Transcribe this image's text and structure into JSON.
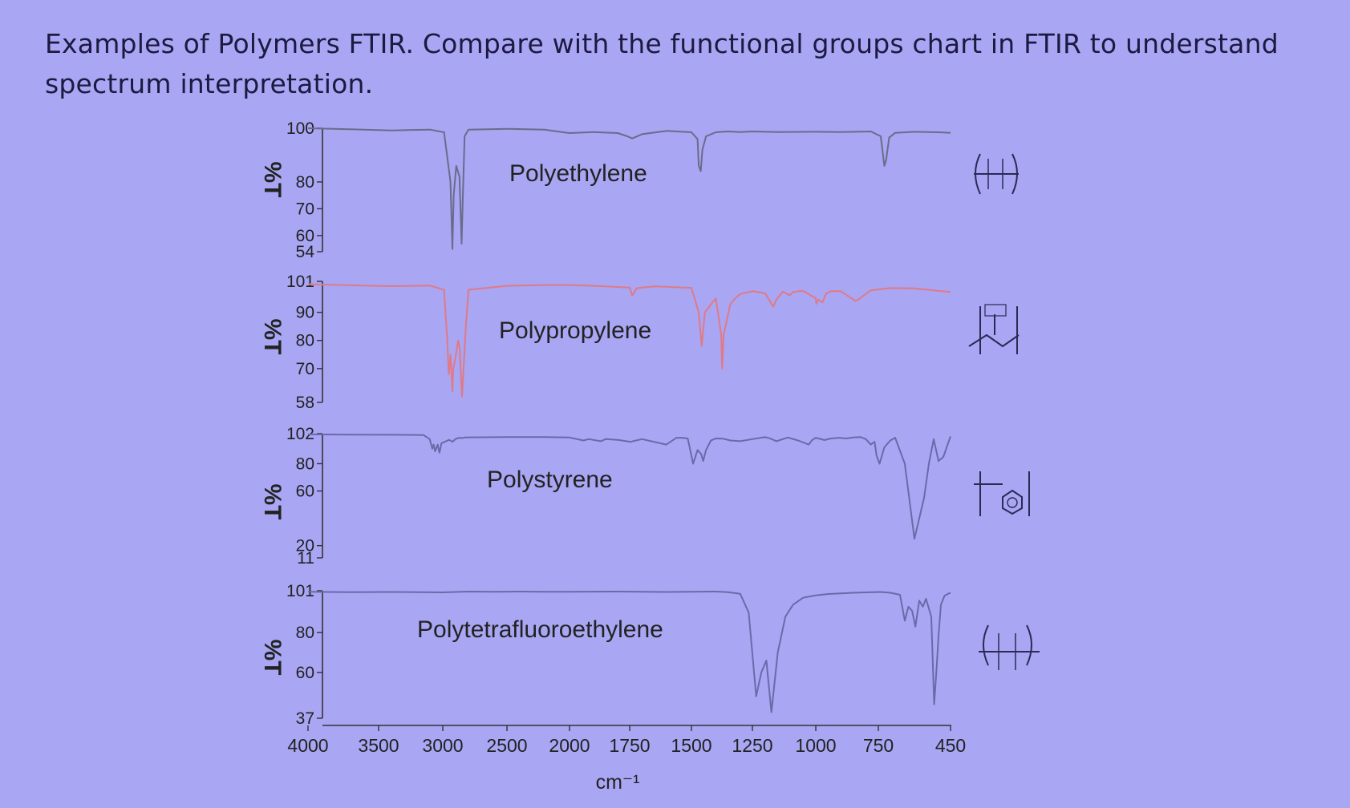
{
  "header": {
    "description": "Examples of Polymers FTIR. Compare with the functional groups chart in FTIR to understand spectrum interpretation."
  },
  "chart_data": {
    "type": "line",
    "xlabel": "cm⁻¹",
    "x_ticks": [
      4000,
      3500,
      3000,
      2500,
      2000,
      1750,
      1500,
      1250,
      1000,
      750,
      450
    ],
    "xlim": [
      4000,
      450
    ],
    "x_axis_note": "scale changes at 2000 cm-1",
    "panels": [
      {
        "name": "Polyethylene",
        "ylabel": "%T",
        "y_ticks": [
          100,
          80,
          70,
          60,
          54
        ],
        "ylim": [
          54,
          100
        ],
        "color": "#6b6b8a",
        "structure": "–(CH2–CH2)n–",
        "series": {
          "x": [
            4000,
            3700,
            3400,
            3100,
            2990,
            2940,
            2925,
            2915,
            2895,
            2870,
            2853,
            2845,
            2830,
            2800,
            2500,
            2200,
            2050,
            2000,
            1900,
            1800,
            1760,
            1740,
            1700,
            1600,
            1500,
            1475,
            1470,
            1462,
            1455,
            1440,
            1400,
            1350,
            1300,
            1250,
            1150,
            1000,
            900,
            780,
            740,
            725,
            718,
            705,
            680,
            600,
            500,
            450
          ],
          "y": [
            100,
            99.6,
            99.2,
            99.5,
            98.5,
            80,
            55,
            75,
            86,
            82,
            57,
            72,
            97,
            99.5,
            99.8,
            99.5,
            98.5,
            98.2,
            98.6,
            98.2,
            97,
            96.2,
            97.8,
            99,
            98.5,
            96,
            86,
            84,
            92,
            97,
            98.5,
            98.8,
            98.6,
            98.8,
            98.6,
            98.7,
            98.6,
            98.8,
            97,
            86,
            88,
            96.5,
            98.3,
            98.7,
            98.5,
            98.3
          ]
        }
      },
      {
        "name": "Polypropylene",
        "ylabel": "%T",
        "y_ticks": [
          101,
          90,
          80,
          70,
          58
        ],
        "ylim": [
          58,
          101
        ],
        "color": "#e07a85",
        "structure": "–(CH2–CH(CH3))n–",
        "series": {
          "x": [
            4000,
            3700,
            3400,
            3100,
            2990,
            2965,
            2953,
            2940,
            2925,
            2918,
            2905,
            2880,
            2868,
            2850,
            2838,
            2820,
            2800,
            2500,
            2200,
            2000,
            1900,
            1750,
            1740,
            1720,
            1650,
            1500,
            1470,
            1458,
            1445,
            1400,
            1378,
            1374,
            1368,
            1340,
            1320,
            1300,
            1250,
            1200,
            1168,
            1155,
            1130,
            1103,
            1090,
            1050,
            1000,
            998,
            990,
            973,
            960,
            940,
            900,
            841,
            830,
            808,
            780,
            700,
            600,
            450
          ],
          "y": [
            100,
            99.6,
            99.3,
            99.5,
            98,
            80,
            68,
            75,
            62,
            70,
            73,
            80,
            77,
            60,
            70,
            85,
            98,
            99.4,
            99.7,
            99.7,
            99.4,
            98.8,
            96,
            98.6,
            99.2,
            98.7,
            90,
            78,
            90,
            95,
            82,
            70,
            82,
            93,
            95,
            96.5,
            97.5,
            96.8,
            92,
            94.5,
            97.4,
            96,
            97.2,
            97.6,
            95,
            93,
            94.5,
            93.5,
            96.5,
            97.5,
            97.5,
            94,
            94.5,
            96,
            97.8,
            98.6,
            98.5,
            97.2
          ]
        }
      },
      {
        "name": "Polystyrene",
        "ylabel": "%T",
        "y_ticks": [
          102,
          80,
          60,
          20,
          11
        ],
        "ylim": [
          11,
          102
        ],
        "color": "#6a6aa8",
        "structure": "–(CH2–CH(C6H5))n–",
        "series": {
          "x": [
            4000,
            3700,
            3400,
            3150,
            3102,
            3082,
            3071,
            3060,
            3040,
            3026,
            3010,
            2950,
            2924,
            2900,
            2870,
            2850,
            2830,
            2800,
            2500,
            2200,
            2000,
            1942,
            1920,
            1870,
            1850,
            1800,
            1745,
            1730,
            1700,
            1602,
            1585,
            1560,
            1540,
            1515,
            1493,
            1475,
            1460,
            1452,
            1440,
            1420,
            1400,
            1370,
            1340,
            1300,
            1250,
            1200,
            1180,
            1155,
            1130,
            1110,
            1070,
            1028,
            1015,
            1000,
            965,
            940,
            905,
            880,
            850,
            820,
            800,
            780,
            765,
            757,
            745,
            725,
            700,
            680,
            640,
            600,
            560,
            540,
            520,
            500,
            480,
            450
          ],
          "y": [
            101.5,
            101.3,
            101.2,
            101,
            98,
            91,
            94,
            89,
            94,
            88,
            95,
            97.5,
            96,
            98.2,
            99,
            98.8,
            99.2,
            99.3,
            99.5,
            99.5,
            99.2,
            97,
            98,
            96.5,
            98,
            97.5,
            96,
            96.8,
            98,
            94,
            96,
            99,
            99,
            98.5,
            80,
            90,
            87,
            82,
            90,
            97,
            98.5,
            98.3,
            97,
            96.5,
            98,
            99.5,
            98.5,
            96.5,
            98,
            99.2,
            97,
            94,
            97.2,
            99,
            97.3,
            98.5,
            99,
            98.5,
            99.2,
            99.5,
            98,
            94,
            96,
            86,
            80,
            92,
            97,
            99,
            80,
            25,
            55,
            80,
            98,
            82,
            85,
            100
          ]
        }
      },
      {
        "name": "Polytetrafluoroethylene",
        "ylabel": "%T",
        "y_ticks": [
          101,
          80,
          60,
          37
        ],
        "ylim": [
          37,
          101
        ],
        "color": "#6a6aa8",
        "structure": "–(CF2–CF2)n–",
        "series": {
          "x": [
            4000,
            3700,
            3400,
            3000,
            2800,
            2600,
            2400,
            2200,
            2000,
            1800,
            1600,
            1400,
            1350,
            1300,
            1265,
            1235,
            1215,
            1195,
            1175,
            1150,
            1120,
            1090,
            1050,
            1000,
            950,
            900,
            850,
            800,
            740,
            700,
            660,
            640,
            625,
            610,
            596,
            580,
            565,
            552,
            530,
            518,
            508,
            500,
            490,
            475,
            460,
            450
          ],
          "y": [
            100.5,
            100.3,
            100.4,
            100.2,
            100.6,
            100.5,
            100.6,
            100.5,
            100.5,
            100.6,
            100.4,
            100.6,
            100.3,
            99.5,
            90,
            48,
            60,
            66,
            40,
            70,
            88,
            94,
            97.5,
            98.7,
            99.4,
            99.7,
            100,
            100.2,
            100.4,
            100,
            99,
            86,
            93,
            91,
            83,
            96,
            93,
            97,
            88,
            44,
            62,
            78,
            94,
            98.5,
            99.5,
            100
          ]
        }
      }
    ],
    "grid": false
  }
}
